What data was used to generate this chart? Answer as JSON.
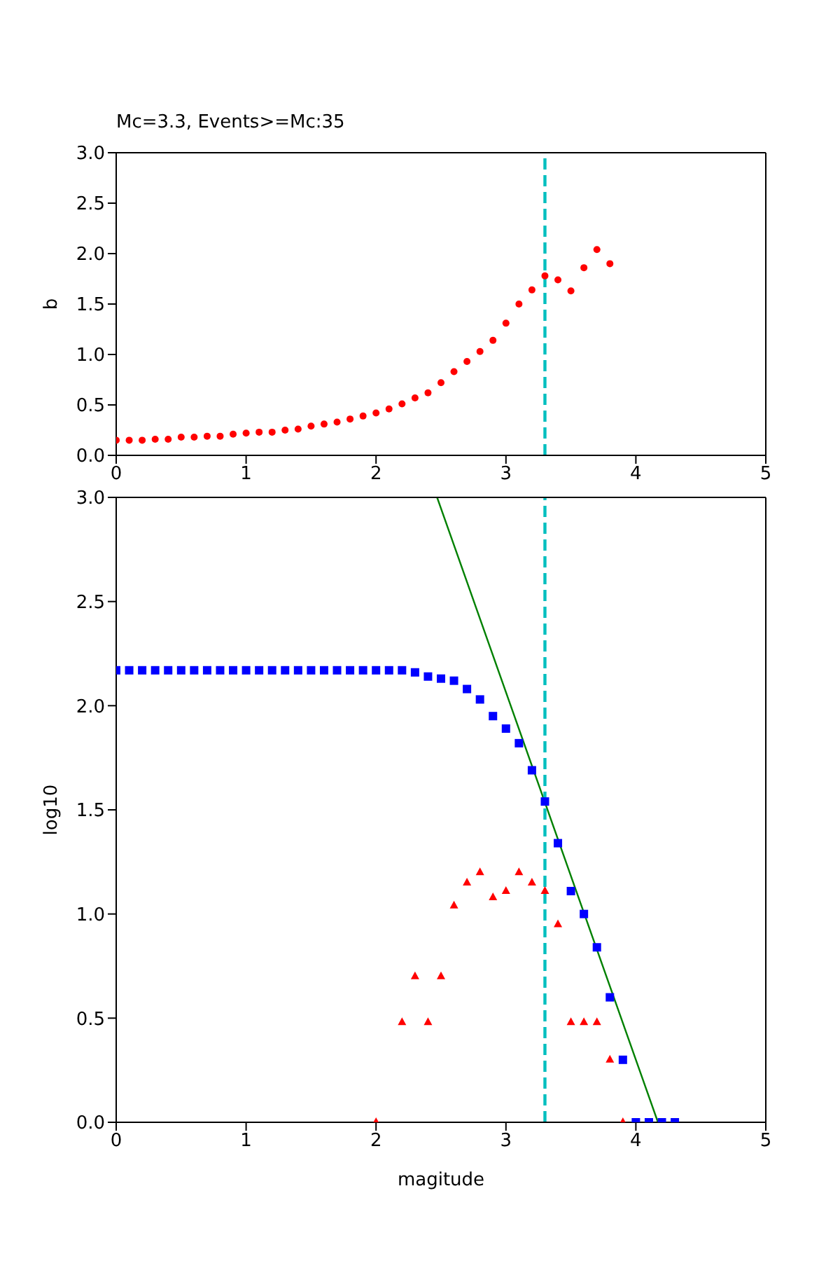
{
  "chart_data": [
    {
      "type": "scatter",
      "title": "Mc=3.3, Events>=Mc:35",
      "ylabel": "b",
      "marker": "circle",
      "x": [
        0,
        0.1,
        0.2,
        0.3,
        0.4,
        0.5,
        0.6,
        0.7,
        0.8,
        0.9,
        1.0,
        1.1,
        1.2,
        1.3,
        1.4,
        1.5,
        1.6,
        1.7,
        1.8,
        1.9,
        2.0,
        2.1,
        2.2,
        2.3,
        2.4,
        2.5,
        2.6,
        2.7,
        2.8,
        2.9,
        3.0,
        3.1,
        3.2,
        3.3,
        3.4,
        3.5,
        3.6,
        3.7,
        3.8
      ],
      "series": [
        {
          "color": "#ff0000",
          "values": [
            0.15,
            0.15,
            0.15,
            0.16,
            0.16,
            0.18,
            0.18,
            0.19,
            0.19,
            0.21,
            0.22,
            0.23,
            0.23,
            0.25,
            0.26,
            0.29,
            0.31,
            0.33,
            0.36,
            0.39,
            0.42,
            0.46,
            0.51,
            0.57,
            0.62,
            0.72,
            0.83,
            0.93,
            1.03,
            1.14,
            1.31,
            1.5,
            1.64,
            1.78,
            1.74,
            1.63,
            1.86,
            2.04,
            1.9
          ]
        }
      ],
      "xlim": [
        0,
        5
      ],
      "xticks": [
        0,
        1,
        2,
        3,
        4,
        5
      ],
      "ylim": [
        0,
        3
      ],
      "yticks": [
        {
          "value": 0,
          "label": "0.0"
        },
        {
          "value": 0.5,
          "label": "0.5"
        },
        {
          "value": 1,
          "label": "1.0"
        },
        {
          "value": 1.5,
          "label": "1.5"
        },
        {
          "value": 2,
          "label": "2.0"
        },
        {
          "value": 2.5,
          "label": "2.5"
        },
        {
          "value": 3,
          "label": "3.0"
        }
      ],
      "ref_lines": [
        {
          "axis": "x",
          "value": 3.3,
          "color": "#00bfbf",
          "line_style": "dashed"
        }
      ]
    },
    {
      "type": "scatter",
      "xlabel": "magitude",
      "ylabel": "log10",
      "series": [
        {
          "marker": "square",
          "color": "#0000ff",
          "x": [
            0,
            0.1,
            0.2,
            0.3,
            0.4,
            0.5,
            0.6,
            0.7,
            0.8,
            0.9,
            1.0,
            1.1,
            1.2,
            1.3,
            1.4,
            1.5,
            1.6,
            1.7,
            1.8,
            1.9,
            2.0,
            2.1,
            2.2,
            2.3,
            2.4,
            2.5,
            2.6,
            2.7,
            2.8,
            2.9,
            3.0,
            3.1,
            3.2,
            3.3,
            3.4,
            3.5,
            3.6,
            3.7,
            3.8,
            3.9,
            4.0,
            4.1,
            4.2,
            4.3
          ],
          "values": [
            2.17,
            2.17,
            2.17,
            2.17,
            2.17,
            2.17,
            2.17,
            2.17,
            2.17,
            2.17,
            2.17,
            2.17,
            2.17,
            2.17,
            2.17,
            2.17,
            2.17,
            2.17,
            2.17,
            2.17,
            2.17,
            2.17,
            2.17,
            2.16,
            2.14,
            2.13,
            2.12,
            2.08,
            2.03,
            1.95,
            1.89,
            1.82,
            1.69,
            1.54,
            1.34,
            1.11,
            1.0,
            0.84,
            0.6,
            0.3,
            0,
            0,
            0,
            0
          ]
        },
        {
          "marker": "triangle",
          "color": "#ff0000",
          "x": [
            2.0,
            2.2,
            2.3,
            2.4,
            2.5,
            2.6,
            2.7,
            2.8,
            2.9,
            3.0,
            3.1,
            3.2,
            3.3,
            3.4,
            3.5,
            3.6,
            3.7,
            3.8,
            3.9
          ],
          "values": [
            0,
            0.48,
            0.7,
            0.48,
            0.7,
            1.04,
            1.15,
            1.2,
            1.08,
            1.11,
            1.2,
            1.15,
            1.11,
            0.95,
            0.48,
            0.48,
            0.48,
            0.3,
            0
          ]
        },
        {
          "type": "line",
          "marker": "none",
          "line_style": "solid",
          "color": "#008000",
          "x": [
            2.47,
            4.17
          ],
          "values": [
            3,
            0
          ]
        }
      ],
      "xlim": [
        0,
        5
      ],
      "xticks": [
        0,
        1,
        2,
        3,
        4,
        5
      ],
      "ylim": [
        0,
        3
      ],
      "yticks": [
        {
          "value": 0,
          "label": "0.0"
        },
        {
          "value": 0.5,
          "label": "0.5"
        },
        {
          "value": 1,
          "label": "1.0"
        },
        {
          "value": 1.5,
          "label": "1.5"
        },
        {
          "value": 2,
          "label": "2.0"
        },
        {
          "value": 2.5,
          "label": "2.5"
        },
        {
          "value": 3,
          "label": "3.0"
        }
      ],
      "ref_lines": [
        {
          "axis": "x",
          "value": 3.3,
          "color": "#00bfbf",
          "line_style": "dashed"
        }
      ]
    }
  ]
}
